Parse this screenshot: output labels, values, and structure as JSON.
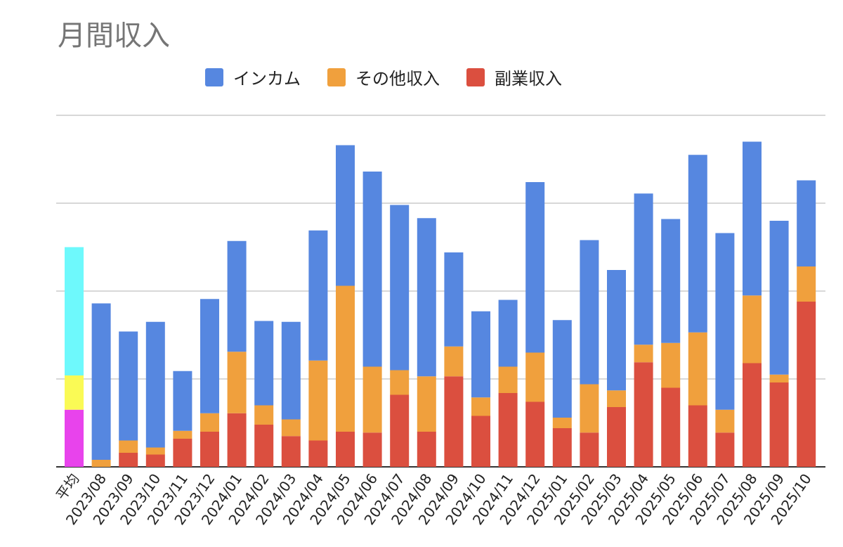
{
  "chart_data": {
    "type": "bar",
    "stacked": true,
    "title": "月間収入",
    "xlabel": "",
    "ylabel": "",
    "ylim": [
      0,
      400
    ],
    "y_gridlines": [
      0,
      100,
      200,
      300,
      400
    ],
    "y_tick_labels_shown": false,
    "grid": true,
    "legend_position": "top",
    "categories": [
      "平均",
      "2023/08",
      "2023/09",
      "2023/10",
      "2023/11",
      "2023/12",
      "2024/01",
      "2024/02",
      "2024/03",
      "2024/04",
      "2024/05",
      "2024/06",
      "2024/07",
      "2024/08",
      "2024/09",
      "2024/10",
      "2024/11",
      "2024/12",
      "2025/01",
      "2025/02",
      "2025/03",
      "2025/04",
      "2025/05",
      "2025/06",
      "2025/07",
      "2025/08",
      "2025/09",
      "2025/10"
    ],
    "series": [
      {
        "name": "副業収入",
        "color": "#DB4F3F",
        "values": [
          65,
          0,
          16,
          14,
          32,
          40,
          61,
          48,
          35,
          30,
          40,
          39,
          82,
          40,
          103,
          58,
          84,
          74,
          44,
          39,
          68,
          119,
          90,
          70,
          39,
          118,
          96,
          188
        ]
      },
      {
        "name": "その他収入",
        "color": "#F0A03D",
        "values": [
          39,
          8,
          14,
          8,
          9,
          21,
          70,
          22,
          19,
          91,
          166,
          75,
          28,
          63,
          34,
          21,
          30,
          56,
          12,
          55,
          19,
          20,
          51,
          83,
          26,
          77,
          9,
          40
        ]
      },
      {
        "name": "インカム",
        "color": "#5687E0",
        "values": [
          146,
          178,
          124,
          143,
          68,
          130,
          126,
          96,
          111,
          148,
          160,
          222,
          188,
          180,
          107,
          98,
          76,
          194,
          111,
          164,
          137,
          172,
          141,
          202,
          201,
          175,
          175,
          98
        ]
      }
    ],
    "average_bar_colors": {
      "副業収入": "#E843EC",
      "その他収入": "#FAFA55",
      "インカム": "#6EF9FC"
    }
  }
}
